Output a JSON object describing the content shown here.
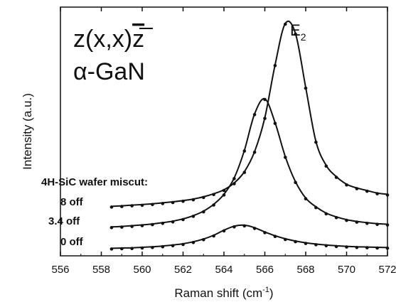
{
  "chart_data": {
    "type": "line",
    "title": "",
    "xlabel": "Raman shift (cm",
    "xlabel_sup": "-1",
    "xlabel_end": ")",
    "ylabel": "Intensity (a.u.)",
    "xlim": [
      556,
      572
    ],
    "ylim": [
      -0.3,
      9.6
    ],
    "x_ticks": [
      "556",
      "558",
      "560",
      "562",
      "564",
      "566",
      "568",
      "570",
      "572"
    ],
    "grid": false,
    "legend": "none",
    "annotations": {
      "geometry": "z(x,x)",
      "geometry_bar": "z",
      "material": "α-GaN",
      "mode_base": "E",
      "mode_sub": "2",
      "miscut_header": "4H-SiC wafer miscut:"
    },
    "series": [
      {
        "name": "8 off",
        "peak_x": 567.1,
        "points": [
          [
            558.5,
            1.67
          ],
          [
            559.0,
            1.69
          ],
          [
            559.5,
            1.72
          ],
          [
            560.0,
            1.74
          ],
          [
            560.5,
            1.77
          ],
          [
            561.0,
            1.81
          ],
          [
            561.5,
            1.85
          ],
          [
            562.0,
            1.9
          ],
          [
            562.5,
            1.96
          ],
          [
            563.0,
            2.05
          ],
          [
            563.5,
            2.17
          ],
          [
            564.0,
            2.33
          ],
          [
            564.5,
            2.6
          ],
          [
            565.0,
            3.05
          ],
          [
            565.5,
            3.85
          ],
          [
            566.0,
            5.2
          ],
          [
            566.5,
            7.3
          ],
          [
            567.0,
            8.95
          ],
          [
            567.5,
            8.55
          ],
          [
            568.0,
            6.4
          ],
          [
            568.5,
            4.25
          ],
          [
            569.0,
            3.3
          ],
          [
            569.5,
            2.85
          ],
          [
            570.0,
            2.55
          ],
          [
            570.5,
            2.4
          ],
          [
            571.0,
            2.3
          ],
          [
            571.5,
            2.2
          ],
          [
            572.0,
            2.15
          ]
        ]
      },
      {
        "name": "3.4 off",
        "peak_x": 565.85,
        "points": [
          [
            558.5,
            0.85
          ],
          [
            559.0,
            0.87
          ],
          [
            559.5,
            0.9
          ],
          [
            560.0,
            0.93
          ],
          [
            560.5,
            0.97
          ],
          [
            561.0,
            1.02
          ],
          [
            561.5,
            1.08
          ],
          [
            562.0,
            1.17
          ],
          [
            562.5,
            1.3
          ],
          [
            563.0,
            1.48
          ],
          [
            563.5,
            1.75
          ],
          [
            564.0,
            2.15
          ],
          [
            564.5,
            2.8
          ],
          [
            565.0,
            3.9
          ],
          [
            565.5,
            5.35
          ],
          [
            566.0,
            5.95
          ],
          [
            566.5,
            5.0
          ],
          [
            567.0,
            3.65
          ],
          [
            567.5,
            2.65
          ],
          [
            568.0,
            2.0
          ],
          [
            568.5,
            1.65
          ],
          [
            569.0,
            1.4
          ],
          [
            569.5,
            1.25
          ],
          [
            570.0,
            1.14
          ],
          [
            570.5,
            1.07
          ],
          [
            571.0,
            1.02
          ],
          [
            571.5,
            0.98
          ],
          [
            572.0,
            0.96
          ]
        ]
      },
      {
        "name": "0 off",
        "peak_x": 564.9,
        "points": [
          [
            558.5,
            0.0
          ],
          [
            559.0,
            0.01
          ],
          [
            559.5,
            0.02
          ],
          [
            560.0,
            0.04
          ],
          [
            560.5,
            0.06
          ],
          [
            561.0,
            0.09
          ],
          [
            561.5,
            0.13
          ],
          [
            562.0,
            0.18
          ],
          [
            562.5,
            0.26
          ],
          [
            563.0,
            0.37
          ],
          [
            563.5,
            0.52
          ],
          [
            564.0,
            0.72
          ],
          [
            564.5,
            0.88
          ],
          [
            565.0,
            0.92
          ],
          [
            565.5,
            0.82
          ],
          [
            566.0,
            0.65
          ],
          [
            566.5,
            0.5
          ],
          [
            567.0,
            0.38
          ],
          [
            567.5,
            0.29
          ],
          [
            568.0,
            0.22
          ],
          [
            568.5,
            0.17
          ],
          [
            569.0,
            0.13
          ],
          [
            569.5,
            0.1
          ],
          [
            570.0,
            0.08
          ],
          [
            570.5,
            0.06
          ],
          [
            571.0,
            0.05
          ],
          [
            571.5,
            0.04
          ],
          [
            572.0,
            0.03
          ]
        ]
      }
    ]
  }
}
